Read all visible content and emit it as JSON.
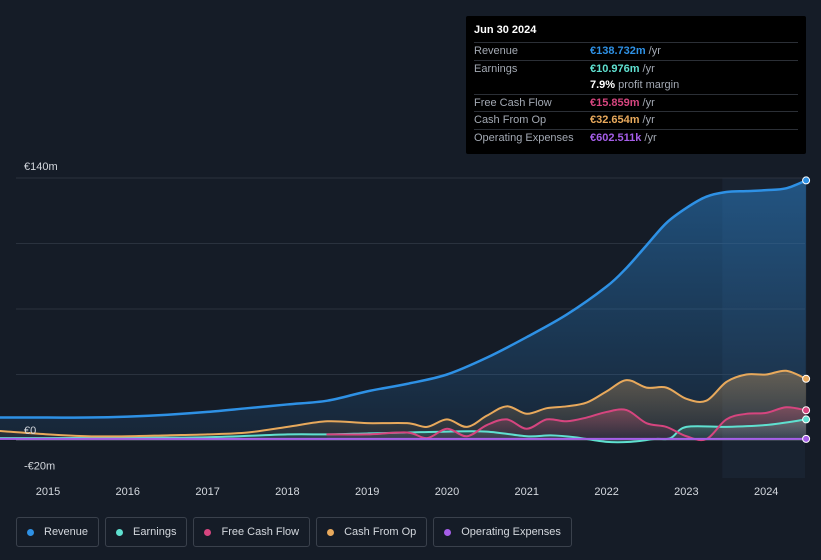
{
  "tooltip": {
    "date": "Jun 30 2024",
    "rows": [
      {
        "label": "Revenue",
        "value": "€138.732m",
        "unit": "/yr",
        "color": "#2e91e5"
      },
      {
        "label": "Earnings",
        "value": "€10.976m",
        "unit": "/yr",
        "color": "#5fe0d0"
      },
      {
        "label": "",
        "value": "7.9%",
        "unit": "profit margin",
        "color": "#ffffff"
      },
      {
        "label": "Free Cash Flow",
        "value": "€15.859m",
        "unit": "/yr",
        "color": "#d6457f"
      },
      {
        "label": "Cash From Op",
        "value": "€32.654m",
        "unit": "/yr",
        "color": "#e8a95c"
      },
      {
        "label": "Operating Expenses",
        "value": "€602.511k",
        "unit": "/yr",
        "color": "#a55ee8"
      }
    ]
  },
  "legend": {
    "items": [
      {
        "label": "Revenue",
        "color": "#2e91e5"
      },
      {
        "label": "Earnings",
        "color": "#5fe0d0"
      },
      {
        "label": "Free Cash Flow",
        "color": "#d6457f"
      },
      {
        "label": "Cash From Op",
        "color": "#e8a95c"
      },
      {
        "label": "Operating Expenses",
        "color": "#a55ee8"
      }
    ]
  },
  "chart_data": {
    "type": "line",
    "title": "",
    "xlabel": "",
    "ylabel": "",
    "ylim": [
      -20,
      140
    ],
    "y_tick_labels": [
      "€140m",
      "€0",
      "-€20m"
    ],
    "x_tick_labels": [
      "2015",
      "2016",
      "2017",
      "2018",
      "2019",
      "2020",
      "2021",
      "2022",
      "2023",
      "2024"
    ],
    "forecast_start": 2023.45,
    "series": [
      {
        "name": "Revenue",
        "color": "#2e91e5",
        "x": [
          2014.0,
          2014.5,
          2015.0,
          2015.5,
          2016.0,
          2016.5,
          2017.0,
          2017.5,
          2018.0,
          2018.5,
          2019.0,
          2019.5,
          2020.0,
          2020.5,
          2021.0,
          2021.5,
          2022.0,
          2022.25,
          2022.5,
          2022.75,
          2023.0,
          2023.25,
          2023.5,
          2023.75,
          2024.0,
          2024.25,
          2024.5
        ],
        "values": [
          12,
          12,
          12,
          12,
          12.5,
          13.5,
          15,
          17,
          19,
          21,
          26,
          30,
          35,
          44,
          55,
          67,
          82,
          92,
          104,
          116,
          124,
          130,
          132.5,
          133,
          133.5,
          134.5,
          138.7
        ]
      },
      {
        "name": "Earnings",
        "color": "#5fe0d0",
        "x": [
          2014.0,
          2015.0,
          2016.0,
          2017.0,
          2018.0,
          2018.5,
          2019.0,
          2019.5,
          2020.0,
          2020.5,
          2021.0,
          2021.3,
          2021.6,
          2022.0,
          2022.3,
          2022.6,
          2022.8,
          2023.0,
          2023.5,
          2024.0,
          2024.5
        ],
        "values": [
          1,
          1,
          1.2,
          1.5,
          3,
          3,
          3.5,
          4,
          4.5,
          4.5,
          2,
          2.5,
          1.5,
          -1,
          -1,
          0.5,
          1,
          7,
          7,
          8,
          11
        ]
      },
      {
        "name": "Free Cash Flow",
        "color": "#d6457f",
        "x": [
          2018.5,
          2019.0,
          2019.5,
          2019.75,
          2020.0,
          2020.25,
          2020.5,
          2020.75,
          2021.0,
          2021.25,
          2021.5,
          2021.75,
          2022.0,
          2022.25,
          2022.5,
          2022.75,
          2023.0,
          2023.25,
          2023.5,
          2023.75,
          2024.0,
          2024.25,
          2024.5
        ],
        "values": [
          3,
          3,
          4,
          1,
          6,
          2,
          8,
          11,
          6,
          11,
          10,
          12,
          15,
          16,
          9,
          7,
          2,
          0.5,
          11,
          14,
          14.5,
          17.5,
          15.9
        ]
      },
      {
        "name": "Cash From Op",
        "color": "#e8a95c",
        "x": [
          2014.0,
          2014.5,
          2015.0,
          2015.5,
          2016.0,
          2016.5,
          2017.0,
          2017.5,
          2018.0,
          2018.5,
          2019.0,
          2019.5,
          2019.75,
          2020.0,
          2020.25,
          2020.5,
          2020.75,
          2021.0,
          2021.25,
          2021.5,
          2021.75,
          2022.0,
          2022.25,
          2022.5,
          2022.75,
          2023.0,
          2023.25,
          2023.5,
          2023.75,
          2024.0,
          2024.25,
          2024.5
        ],
        "values": [
          6,
          4.5,
          3,
          2,
          2,
          2.5,
          3,
          4,
          7,
          10,
          9,
          9,
          7,
          11,
          7,
          13,
          18,
          14,
          17,
          18,
          20,
          26,
          32,
          28,
          28,
          22,
          21,
          31,
          35,
          35,
          37,
          32.7
        ]
      },
      {
        "name": "Operating Expenses",
        "color": "#a55ee8",
        "x": [
          2014.0,
          2024.5
        ],
        "values": [
          0.6,
          0.6
        ]
      }
    ]
  }
}
